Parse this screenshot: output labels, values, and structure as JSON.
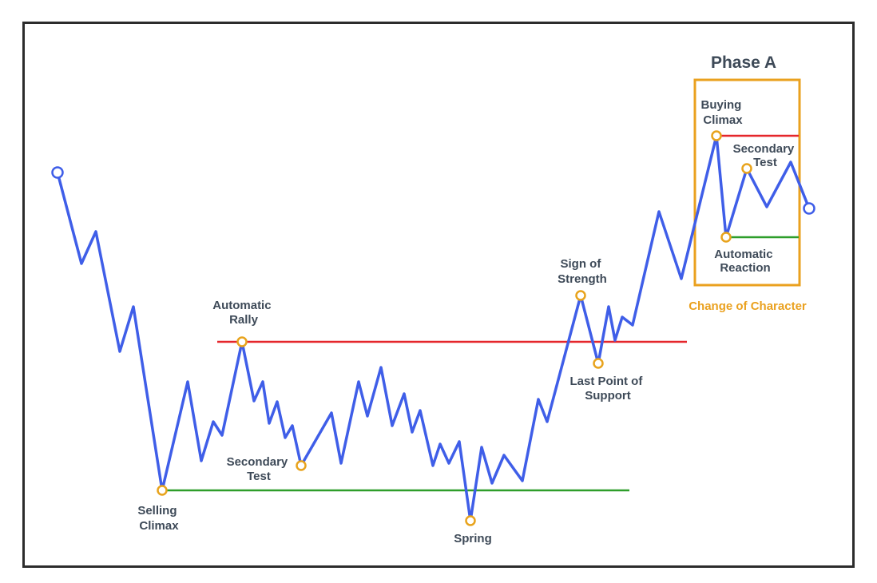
{
  "colors": {
    "price_line": "#3f5ee8",
    "resistance": "#e5262b",
    "support": "#2e9e2a",
    "event_marker": "#e8a31c",
    "endpoint_marker": "#3f5ee8",
    "phase_box": "#eaa11f",
    "frame": "#2c2c2c",
    "text": "#3e4a58"
  },
  "phase_box": {
    "title": "Phase A",
    "caption": "Change of Character"
  },
  "events": {
    "selling_climax": [
      "Selling",
      "Climax"
    ],
    "automatic_rally": [
      "Automatic",
      "Rally"
    ],
    "secondary_test_left": [
      "Secondary",
      "Test"
    ],
    "spring": [
      "Spring"
    ],
    "sign_of_strength": [
      "Sign of",
      "Strength"
    ],
    "last_point_of_support": [
      "Last Point of",
      "Support"
    ],
    "buying_climax": [
      "Buying",
      "Climax"
    ],
    "secondary_test_right": [
      "Secondary",
      "Test"
    ],
    "automatic_reaction": [
      "Automatic",
      "Reaction"
    ]
  }
}
